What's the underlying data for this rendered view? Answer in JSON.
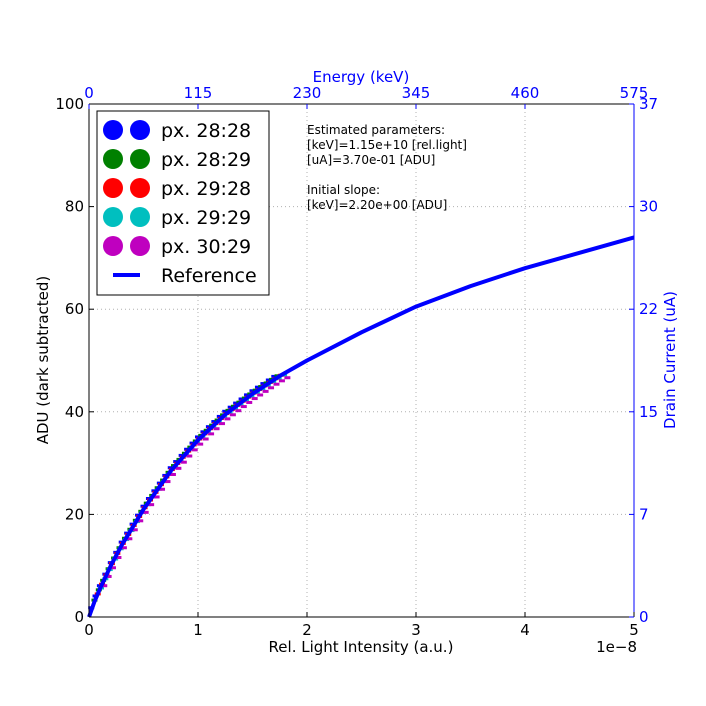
{
  "chart_data": {
    "type": "line",
    "title": "",
    "xlabel": "Rel. Light Intensity (a.u.)",
    "x_offset_label": "1e−8",
    "xlim": [
      0,
      5
    ],
    "xticks": [
      "0",
      "1",
      "2",
      "3",
      "4",
      "5"
    ],
    "ylabel": "ADU (dark subtracted)",
    "ylim": [
      0,
      100
    ],
    "yticks": [
      "0",
      "20",
      "40",
      "60",
      "80",
      "100"
    ],
    "top_axis": {
      "label": "Energy (keV)",
      "ticks": [
        "0",
        "115",
        "230",
        "345",
        "460",
        "575"
      ],
      "color": "#0000ff"
    },
    "right_axis": {
      "label": "Drain Current (uA)",
      "ticks": [
        "0",
        "7",
        "15",
        "22",
        "30",
        "37"
      ],
      "color": "#0000ff"
    },
    "grid": true,
    "legend_position": "top-left",
    "annotation": [
      "Estimated parameters:",
      "[keV]=1.15e+10 [rel.light]",
      "[uA]=3.70e-01 [ADU]",
      "",
      "Initial slope:",
      "[keV]=2.20e+00 [ADU]"
    ],
    "reference": {
      "name": "Reference",
      "color": "#0000ff",
      "x": [
        0,
        0.05,
        0.1,
        0.2,
        0.3,
        0.5,
        0.75,
        1.0,
        1.25,
        1.5,
        1.75,
        2.0,
        2.5,
        3.0,
        3.5,
        4.0,
        4.5,
        5.0
      ],
      "y": [
        0,
        3,
        5.5,
        10,
        14,
        21,
        28.5,
        34.5,
        39.5,
        43.5,
        47,
        50,
        55.5,
        60.5,
        64.5,
        68,
        71,
        74
      ]
    },
    "series": [
      {
        "name": "px. 28:28",
        "color": "#0000ff",
        "x_shift": 0.0,
        "y_shift": 0.6
      },
      {
        "name": "px. 28:29",
        "color": "#008000",
        "x_shift": 0.03,
        "y_shift": 0.3
      },
      {
        "name": "px. 29:28",
        "color": "#ff0000",
        "x_shift": 0.06,
        "y_shift": 0.0
      },
      {
        "name": "px. 29:29",
        "color": "#00bfbf",
        "x_shift": 0.09,
        "y_shift": -0.3
      },
      {
        "name": "px. 30:29",
        "color": "#bf00bf",
        "x_shift": 0.12,
        "y_shift": -1.2
      }
    ],
    "series_x": [
      0.02,
      0.06,
      0.1,
      0.15,
      0.2,
      0.25,
      0.3,
      0.35,
      0.4,
      0.45,
      0.5,
      0.55,
      0.6,
      0.65,
      0.7,
      0.75,
      0.8,
      0.85,
      0.9,
      0.95,
      1.0,
      1.05,
      1.1,
      1.15,
      1.2,
      1.25,
      1.3,
      1.35,
      1.4,
      1.45,
      1.5,
      1.55,
      1.6,
      1.65,
      1.7
    ]
  }
}
